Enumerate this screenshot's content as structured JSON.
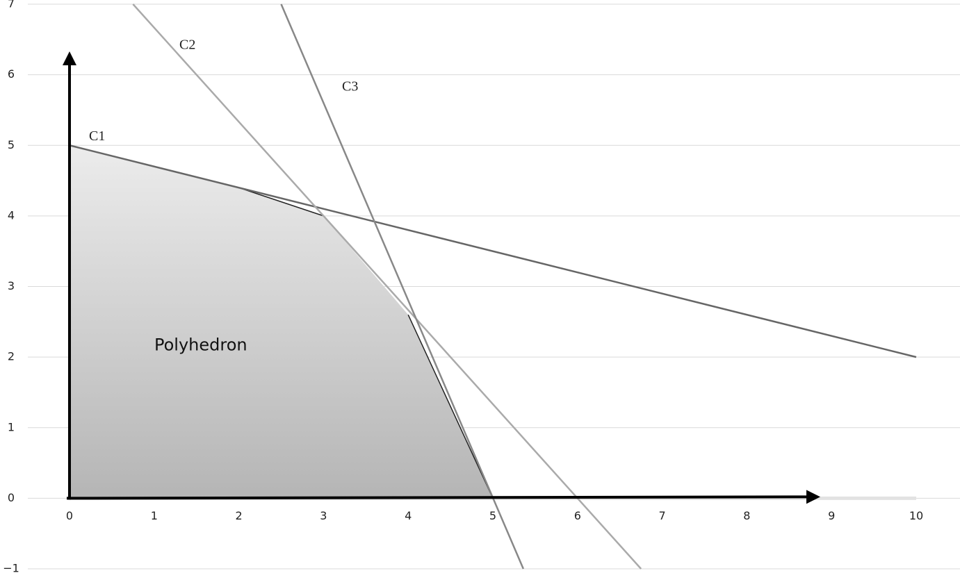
{
  "chart_data": {
    "type": "line",
    "xlim": [
      0,
      10
    ],
    "ylim": [
      -1,
      7
    ],
    "xticks": [
      0,
      1,
      2,
      3,
      4,
      5,
      6,
      7,
      8,
      9,
      10
    ],
    "yticks": [
      {
        "value": -1,
        "label": "−1"
      },
      0,
      1,
      2,
      3,
      4,
      5,
      6,
      7
    ],
    "grid": true,
    "polygon": {
      "label": "Polyhedron",
      "x": [
        0,
        0,
        2,
        3,
        4,
        5
      ],
      "y": [
        0,
        5,
        4.4,
        4,
        2.6,
        0
      ]
    },
    "series": [
      {
        "name": "C1",
        "color": "#666666",
        "x": [
          0,
          10
        ],
        "values": [
          5,
          2
        ]
      },
      {
        "name": "C2",
        "color": "#aaaaaa",
        "x": [
          0.75,
          6.75
        ],
        "values": [
          7,
          -1
        ]
      },
      {
        "name": "C3",
        "color": "#888888",
        "x": [
          2.5,
          5.36
        ],
        "values": [
          7,
          -1
        ]
      }
    ]
  }
}
